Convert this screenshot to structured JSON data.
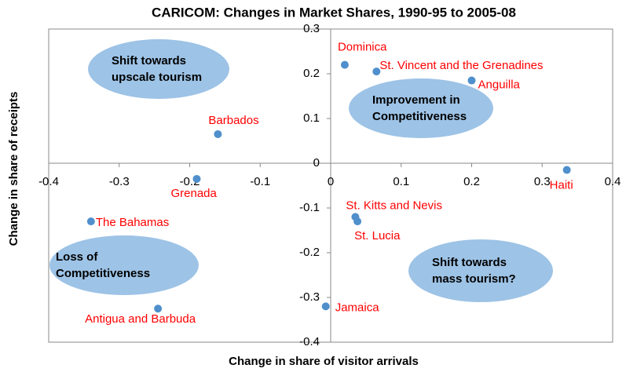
{
  "chart_data": {
    "type": "scatter",
    "title": "CARICOM:  Changes  in Market Shares, 1990-95  to 2005-08",
    "x_label": "Change in share of visitor arrivals",
    "y_label": "Change in share of receipts",
    "labels": [
      "Dominica",
      "St. Vincent and the Grenadines",
      "Anguilla",
      "Barbados",
      "Grenada",
      "Haiti",
      "The Bahamas",
      "St. Kitts and Nevis",
      "St. Lucia",
      "Jamaica",
      "Antigua and Barbuda"
    ],
    "x": [
      0.02,
      0.065,
      0.2,
      -0.16,
      -0.19,
      0.335,
      -0.34,
      0.035,
      0.038,
      -0.007,
      -0.245
    ],
    "y": [
      0.22,
      0.205,
      0.185,
      0.065,
      -0.035,
      -0.015,
      -0.13,
      -0.12,
      -0.13,
      -0.32,
      -0.325
    ],
    "color": "#4f8fcc",
    "label_color": "#ff0000",
    "xlim": [
      -0.4,
      0.4
    ],
    "xticks": [
      -0.4,
      -0.3,
      -0.2,
      -0.1,
      0,
      0.1,
      0.2,
      0.3,
      0.4
    ],
    "ylim": [
      -0.4,
      0.3
    ],
    "yticks": [
      -0.4,
      -0.3,
      -0.2,
      -0.1,
      0,
      0.1,
      0.2,
      0.3
    ],
    "annotations": [
      {
        "lines": [
          "Shift towards",
          "upscale tourism"
        ]
      },
      {
        "lines": [
          "Improvement in",
          "Competitiveness"
        ]
      },
      {
        "lines": [
          "Loss of",
          "Competitiveness"
        ]
      },
      {
        "lines": [
          "Shift towards",
          "mass tourism?"
        ]
      }
    ]
  }
}
